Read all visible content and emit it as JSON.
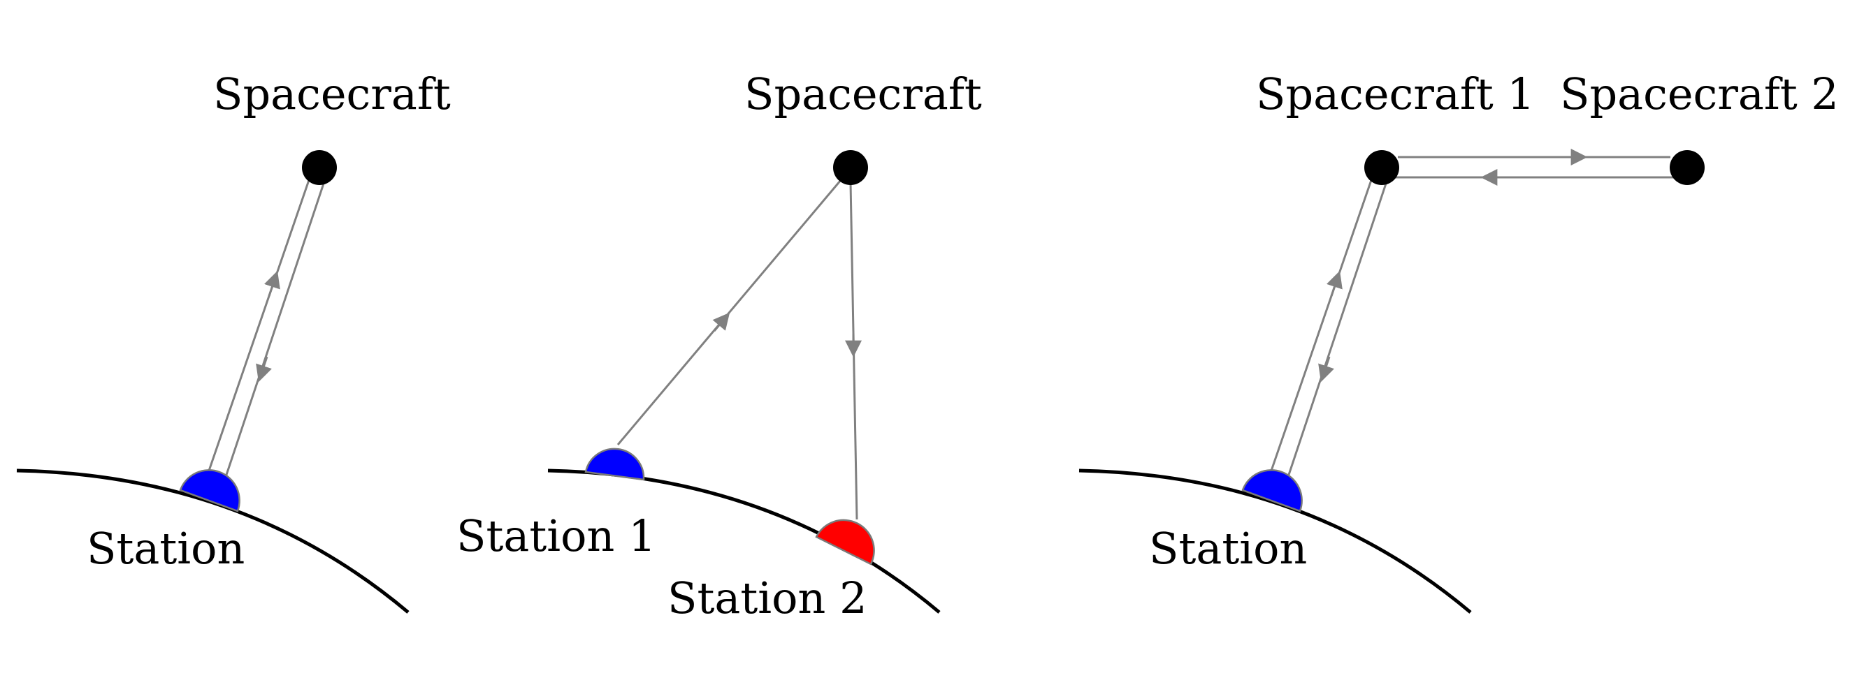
{
  "panels": [
    {
      "spacecraft_labels": [
        "Spacecraft"
      ],
      "station_labels": [
        "Station"
      ]
    },
    {
      "spacecraft_labels": [
        "Spacecraft"
      ],
      "station_labels": [
        "Station 1",
        "Station 2"
      ]
    },
    {
      "spacecraft_labels": [
        "Spacecraft 1",
        "Spacecraft 2"
      ],
      "station_labels": [
        "Station"
      ]
    }
  ],
  "colors": {
    "earth": "#000000",
    "link": "#808080",
    "spacecraft": "#000000",
    "station_1": "#0000ff",
    "station_2": "#ff0000"
  }
}
